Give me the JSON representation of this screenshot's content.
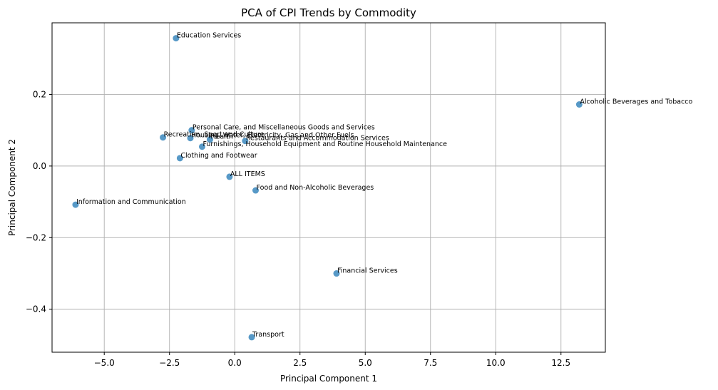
{
  "chart_data": {
    "type": "scatter",
    "title": "PCA of CPI Trends by Commodity",
    "xlabel": "Principal Component 1",
    "ylabel": "Principal Component 2",
    "xlim": [
      -7.0,
      14.2
    ],
    "ylim": [
      -0.52,
      0.4
    ],
    "xticks": [
      -5.0,
      -2.5,
      0.0,
      2.5,
      5.0,
      7.5,
      10.0,
      12.5
    ],
    "xtick_labels": [
      "−5.0",
      "−2.5",
      "0.0",
      "2.5",
      "5.0",
      "7.5",
      "10.0",
      "12.5"
    ],
    "yticks": [
      -0.4,
      -0.2,
      0.0,
      0.2
    ],
    "ytick_labels": [
      "−0.4",
      "−0.2",
      "0.0",
      "0.2"
    ],
    "grid": true,
    "point_color": "#1f77b4",
    "points": [
      {
        "label": "Education Services",
        "x": -2.25,
        "y": 0.357
      },
      {
        "label": "Alcoholic Beverages and Tobacco",
        "x": 13.2,
        "y": 0.172
      },
      {
        "label": "Personal Care, and Miscellaneous Goods and Services",
        "x": -1.65,
        "y": 0.1
      },
      {
        "label": "Recreation, Sport and Culture",
        "x": -2.75,
        "y": 0.08
      },
      {
        "label": "Housing, Water, Electricity, Gas and Other Fuels",
        "x": -1.7,
        "y": 0.078
      },
      {
        "label": "Health",
        "x": -0.95,
        "y": 0.074
      },
      {
        "label": "Restaurants and Accommodation Services",
        "x": 0.4,
        "y": 0.07
      },
      {
        "label": "Furnishings, Household Equipment and Routine Household Maintenance",
        "x": -1.25,
        "y": 0.054
      },
      {
        "label": "Clothing and Footwear",
        "x": -2.1,
        "y": 0.022
      },
      {
        "label": "ALL ITEMS",
        "x": -0.2,
        "y": -0.03
      },
      {
        "label": "Food and Non-Alcoholic Beverages",
        "x": 0.8,
        "y": -0.068
      },
      {
        "label": "Information and Communication",
        "x": -6.1,
        "y": -0.108
      },
      {
        "label": "Financial Services",
        "x": 3.9,
        "y": -0.3
      },
      {
        "label": "Transport",
        "x": 0.65,
        "y": -0.478
      }
    ]
  }
}
